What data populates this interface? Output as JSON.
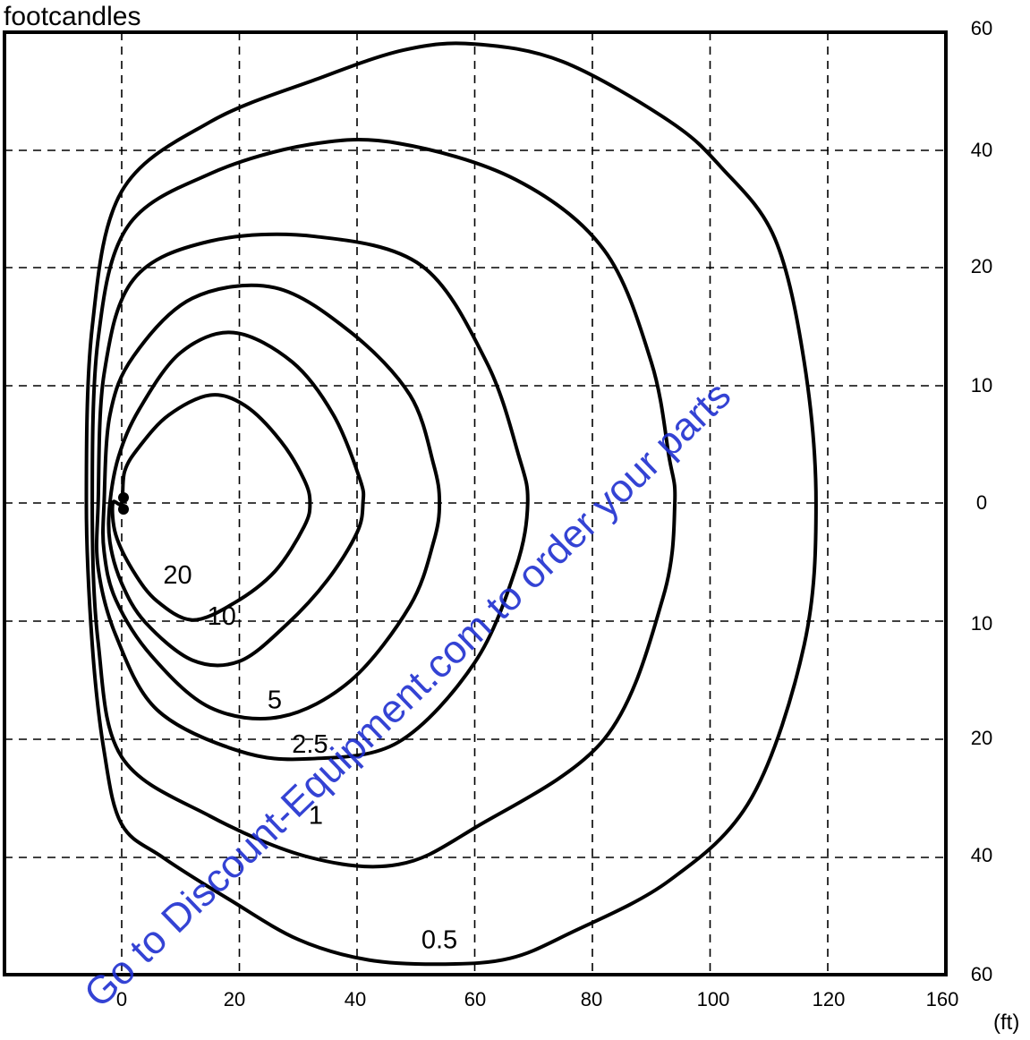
{
  "unit_label": "footcandles",
  "x_unit_label": "(ft)",
  "watermark": "Go to Discount-Equipment.com to order your parts",
  "colors": {
    "contour": "#000000",
    "grid": "#000000",
    "watermark": "#1f2fd0"
  },
  "chart_data": {
    "type": "line",
    "title": "",
    "subtitle": "",
    "xlabel": "(ft)",
    "ylabel": "footcandles",
    "grid": true,
    "legend": "none",
    "x_ticks": [
      "0",
      "20",
      "40",
      "60",
      "80",
      "100",
      "120",
      "160"
    ],
    "y_ticks_right": [
      "60",
      "40",
      "20",
      "10",
      "0",
      "10",
      "20",
      "40",
      "60"
    ],
    "fixture_marker": {
      "x": 0,
      "y": 0
    },
    "series": [
      {
        "name": "20",
        "points": [
          [
            0,
            0
          ],
          [
            0.5,
            2.7
          ],
          [
            3,
            4.8
          ],
          [
            8,
            7.5
          ],
          [
            15,
            9.2
          ],
          [
            21,
            8.3
          ],
          [
            27,
            5.3
          ],
          [
            31,
            2
          ],
          [
            32,
            0
          ],
          [
            31,
            -2
          ],
          [
            26,
            -5.8
          ],
          [
            19,
            -8.5
          ],
          [
            12,
            -9.9
          ],
          [
            6,
            -8.3
          ],
          [
            2,
            -5.8
          ],
          [
            -1,
            -2.7
          ],
          [
            -1.5,
            0
          ]
        ],
        "label_at": [
          9.5,
          -6.8
        ]
      },
      {
        "name": "10",
        "points": [
          [
            -2,
            0
          ],
          [
            -0.5,
            4
          ],
          [
            3,
            8
          ],
          [
            10,
            12.8
          ],
          [
            19,
            14.5
          ],
          [
            29,
            12
          ],
          [
            36,
            7.5
          ],
          [
            40.5,
            2
          ],
          [
            41,
            0
          ],
          [
            40,
            -2.5
          ],
          [
            35,
            -6.5
          ],
          [
            28,
            -10.3
          ],
          [
            20,
            -13.4
          ],
          [
            12,
            -13.3
          ],
          [
            4,
            -10.1
          ],
          [
            0,
            -6.8
          ],
          [
            -2,
            -3.3
          ]
        ],
        "label_at": [
          17,
          -10.3
        ]
      },
      {
        "name": "5",
        "points": [
          [
            -3,
            0
          ],
          [
            -2,
            7.5
          ],
          [
            2,
            12.5
          ],
          [
            12,
            17.4
          ],
          [
            26,
            18.3
          ],
          [
            39,
            14.5
          ],
          [
            49,
            9.2
          ],
          [
            53,
            3.3
          ],
          [
            54,
            0
          ],
          [
            53,
            -3.3
          ],
          [
            49,
            -8.7
          ],
          [
            39,
            -15
          ],
          [
            27,
            -18.1
          ],
          [
            15,
            -17.3
          ],
          [
            5,
            -12.9
          ],
          [
            -1,
            -8.2
          ],
          [
            -3,
            -4.1
          ]
        ],
        "label_at": [
          26,
          -17.4
        ]
      },
      {
        "name": "2.5",
        "points": [
          [
            -4,
            0
          ],
          [
            -3,
            11
          ],
          [
            2,
            19
          ],
          [
            15,
            24.5
          ],
          [
            33,
            25.3
          ],
          [
            51,
            20.3
          ],
          [
            62,
            12
          ],
          [
            67.5,
            4
          ],
          [
            69,
            0
          ],
          [
            67,
            -5.5
          ],
          [
            60,
            -13.5
          ],
          [
            47,
            -20.5
          ],
          [
            32,
            -23.3
          ],
          [
            20,
            -22
          ],
          [
            6,
            -17.5
          ],
          [
            -1,
            -11.2
          ],
          [
            -4,
            -5.5
          ]
        ],
        "label_at": [
          32,
          -22.3
        ]
      },
      {
        "name": "1",
        "points": [
          [
            -5,
            0
          ],
          [
            -4,
            14
          ],
          [
            1,
            27
          ],
          [
            15,
            36
          ],
          [
            32,
            41
          ],
          [
            47,
            41.2
          ],
          [
            67,
            35
          ],
          [
            82,
            23
          ],
          [
            90,
            12
          ],
          [
            93,
            4
          ],
          [
            94,
            0
          ],
          [
            92,
            -8
          ],
          [
            82,
            -20
          ],
          [
            60,
            -35
          ],
          [
            47,
            -41.2
          ],
          [
            32,
            -40
          ],
          [
            15,
            -33
          ],
          [
            0,
            -23
          ],
          [
            -4,
            -11.8
          ]
        ],
        "label_at": [
          33,
          -34.3
        ]
      },
      {
        "name": "0.5",
        "points": [
          [
            -6,
            0
          ],
          [
            -5,
            15
          ],
          [
            0,
            33
          ],
          [
            15,
            44.8
          ],
          [
            33,
            52
          ],
          [
            48,
            57
          ],
          [
            60,
            58
          ],
          [
            75,
            55
          ],
          [
            93,
            45
          ],
          [
            102,
            37
          ],
          [
            111,
            25
          ],
          [
            116,
            12
          ],
          [
            118,
            0
          ],
          [
            116,
            -12
          ],
          [
            107,
            -30
          ],
          [
            93,
            -44
          ],
          [
            76,
            -53
          ],
          [
            66,
            -57.2
          ],
          [
            55,
            -58.2
          ],
          [
            42,
            -57.5
          ],
          [
            30,
            -54
          ],
          [
            18,
            -47
          ],
          [
            7,
            -40
          ],
          [
            0,
            -34.4
          ],
          [
            -3,
            -22
          ],
          [
            -5,
            -12
          ]
        ],
        "label_at": [
          54,
          -55.5
        ]
      }
    ]
  }
}
